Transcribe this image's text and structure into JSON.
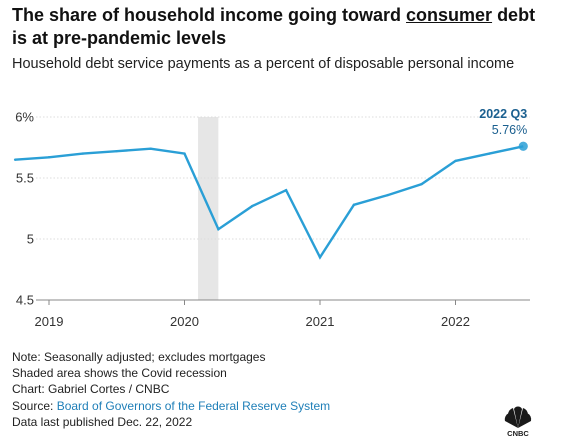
{
  "header": {
    "title_before": "The share of household income going toward ",
    "title_link": "consumer",
    "title_after": " debt is at pre-pandemic levels",
    "subtitle": "Household debt service payments as a percent of disposable personal income"
  },
  "chart_data": {
    "type": "line",
    "x": [
      2018.75,
      2019.0,
      2019.25,
      2019.5,
      2019.75,
      2020.0,
      2020.25,
      2020.5,
      2020.75,
      2021.0,
      2021.25,
      2021.5,
      2021.75,
      2022.0,
      2022.25,
      2022.5
    ],
    "series": [
      {
        "values": [
          5.65,
          5.67,
          5.7,
          5.72,
          5.74,
          5.7,
          5.08,
          5.27,
          5.4,
          4.85,
          5.28,
          5.36,
          5.45,
          5.64,
          5.7,
          5.76
        ],
        "color": "#2a9fd6"
      }
    ],
    "ylim": [
      4.5,
      6.0
    ],
    "y_ticks": [
      4.5,
      5.0,
      5.5,
      6.0
    ],
    "y_tick_labels": [
      "4.5",
      "5",
      "5.5",
      "6%"
    ],
    "x_ticks": [
      2019,
      2020,
      2021,
      2022
    ],
    "x_tick_labels": [
      "2019",
      "2020",
      "2021",
      "2022"
    ],
    "shaded_region": {
      "start": 2020.1,
      "end": 2020.25,
      "color": "#e6e6e6"
    },
    "last_point_label": {
      "title": "2022 Q3",
      "value": "5.76%",
      "color": "#1a5f8f"
    },
    "grid": true,
    "legend": "none"
  },
  "footer": {
    "note1": "Note: Seasonally adjusted; excludes mortgages",
    "note2": "Shaded area shows the Covid recession",
    "credit": "Chart: Gabriel Cortes / CNBC",
    "source_prefix": "Source: ",
    "source_link": "Board of Governors of the Federal Reserve System",
    "published": "Data last published Dec. 22, 2022"
  },
  "logo": {
    "text": "CNBC",
    "icon": "nbc-peacock-icon"
  }
}
